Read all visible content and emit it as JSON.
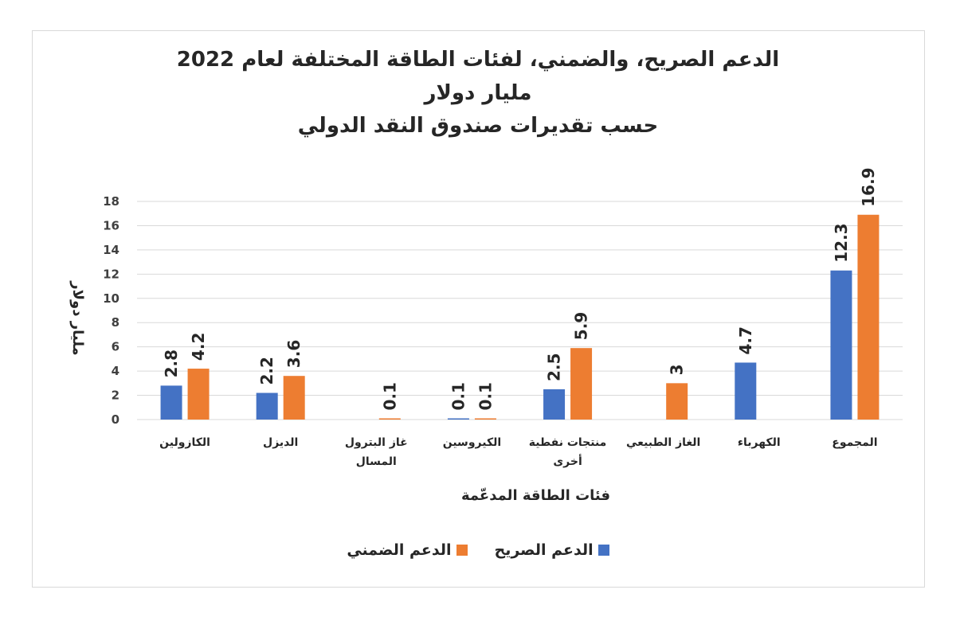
{
  "chart_data": {
    "type": "bar",
    "title": "الدعم الصريح، والضمني، لفئات الطاقة المختلفة لعام 2022",
    "subtitle_1": "مليار دولار",
    "subtitle_2": "حسب تقديرات صندوق النقد الدولي",
    "categories": [
      [
        "الكازولين"
      ],
      [
        "الديزل"
      ],
      [
        "غاز البترول",
        "المسال"
      ],
      [
        "الكيروسين"
      ],
      [
        "منتجات نفطية",
        "أخرى"
      ],
      [
        "الغاز الطبيعي"
      ],
      [
        "الكهرباء"
      ],
      [
        "المجموع"
      ]
    ],
    "series": [
      {
        "name": "الدعم الصريح",
        "color": "#4472c4",
        "values": [
          2.8,
          2.2,
          null,
          0.1,
          2.5,
          null,
          4.7,
          12.3
        ]
      },
      {
        "name": "الدعم الضمني",
        "color": "#ed7d31",
        "values": [
          4.2,
          3.6,
          0.1,
          0.1,
          5.9,
          3,
          null,
          16.9
        ]
      }
    ],
    "xlabel": "فئات الطاقة المدعّمة",
    "ylabel": "مليار دولار",
    "ylim": [
      0,
      18
    ],
    "yticks": [
      0,
      2,
      4,
      6,
      8,
      10,
      12,
      14,
      16,
      18
    ],
    "grid": true,
    "legend_position": "bottom"
  }
}
